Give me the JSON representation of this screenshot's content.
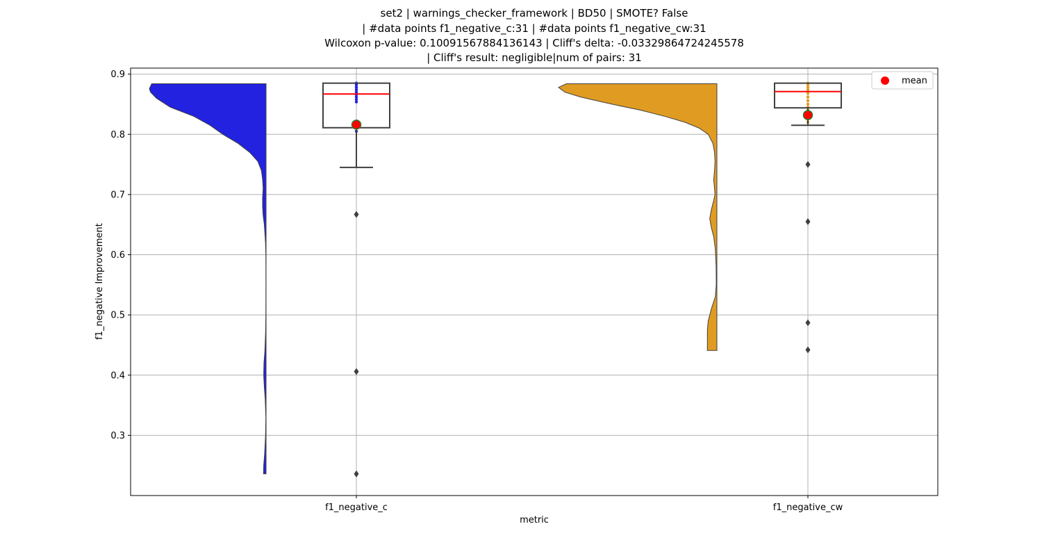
{
  "chart_data": {
    "type": "violin-box",
    "title_lines": [
      "set2 | warnings_checker_framework | BD50 | SMOTE? False",
      "| #data points f1_negative_c:31 | #data points f1_negative_cw:31",
      "Wilcoxon p-value: 0.10091567884136143 | Cliff's delta: -0.03329864724245578",
      "| Cliff's result: negligible|num of pairs: 31"
    ],
    "xlabel": "metric",
    "ylabel": "f1_negative Improvement",
    "categories": [
      "f1_negative_c",
      "f1_negative_cw"
    ],
    "ylim": [
      0.2,
      0.91
    ],
    "yticks": [
      0.3,
      0.4,
      0.5,
      0.6,
      0.7,
      0.8,
      0.9
    ],
    "ytick_labels": [
      "0.3",
      "0.4",
      "0.5",
      "0.6",
      "0.7",
      "0.8",
      "0.9"
    ],
    "grid": true,
    "legend": {
      "position": "upper-right",
      "entries": [
        {
          "label": "mean",
          "color": "#ff0000"
        }
      ]
    },
    "series": [
      {
        "category": "f1_negative_c",
        "violin_color": "#2222e0",
        "violin_side": "left",
        "violin_range": [
          0.236,
          0.884
        ],
        "violin_profile": [
          [
            0.884,
            0.98
          ],
          [
            0.876,
            1.0
          ],
          [
            0.87,
            0.99
          ],
          [
            0.86,
            0.94
          ],
          [
            0.845,
            0.82
          ],
          [
            0.83,
            0.62
          ],
          [
            0.815,
            0.48
          ],
          [
            0.8,
            0.37
          ],
          [
            0.785,
            0.24
          ],
          [
            0.77,
            0.14
          ],
          [
            0.755,
            0.07
          ],
          [
            0.74,
            0.04
          ],
          [
            0.725,
            0.03
          ],
          [
            0.71,
            0.025
          ],
          [
            0.695,
            0.03
          ],
          [
            0.68,
            0.03
          ],
          [
            0.665,
            0.025
          ],
          [
            0.65,
            0.015
          ],
          [
            0.62,
            0.005
          ],
          [
            0.6,
            0.002
          ],
          [
            0.55,
            0.001
          ],
          [
            0.5,
            0.002
          ],
          [
            0.47,
            0.004
          ],
          [
            0.44,
            0.01
          ],
          [
            0.42,
            0.018
          ],
          [
            0.4,
            0.02
          ],
          [
            0.38,
            0.015
          ],
          [
            0.36,
            0.007
          ],
          [
            0.33,
            0.002
          ],
          [
            0.3,
            0.004
          ],
          [
            0.27,
            0.012
          ],
          [
            0.25,
            0.02
          ],
          [
            0.236,
            0.022
          ]
        ],
        "q1": 0.811,
        "median": 0.867,
        "q3": 0.885,
        "whisker_low": 0.745,
        "whisker_high": 0.885,
        "mean": 0.816,
        "outliers": [
          0.667,
          0.406,
          0.236
        ],
        "points": [
          0.885,
          0.884,
          0.882,
          0.878,
          0.874,
          0.87,
          0.866,
          0.862,
          0.858,
          0.854,
          0.822,
          0.817,
          0.81,
          0.805
        ]
      },
      {
        "category": "f1_negative_cw",
        "violin_color": "#e09c22",
        "violin_side": "left",
        "violin_range": [
          0.441,
          0.884
        ],
        "violin_profile": [
          [
            0.884,
            0.95
          ],
          [
            0.878,
            1.0
          ],
          [
            0.87,
            0.96
          ],
          [
            0.862,
            0.86
          ],
          [
            0.85,
            0.66
          ],
          [
            0.84,
            0.48
          ],
          [
            0.83,
            0.33
          ],
          [
            0.82,
            0.2
          ],
          [
            0.81,
            0.11
          ],
          [
            0.8,
            0.055
          ],
          [
            0.785,
            0.025
          ],
          [
            0.77,
            0.015
          ],
          [
            0.755,
            0.012
          ],
          [
            0.74,
            0.015
          ],
          [
            0.725,
            0.02
          ],
          [
            0.71,
            0.015
          ],
          [
            0.7,
            0.012
          ],
          [
            0.69,
            0.02
          ],
          [
            0.675,
            0.035
          ],
          [
            0.66,
            0.045
          ],
          [
            0.645,
            0.035
          ],
          [
            0.63,
            0.02
          ],
          [
            0.61,
            0.01
          ],
          [
            0.58,
            0.005
          ],
          [
            0.55,
            0.004
          ],
          [
            0.53,
            0.01
          ],
          [
            0.51,
            0.035
          ],
          [
            0.49,
            0.055
          ],
          [
            0.475,
            0.06
          ],
          [
            0.455,
            0.06
          ],
          [
            0.441,
            0.06
          ]
        ],
        "q1": 0.844,
        "median": 0.871,
        "q3": 0.885,
        "whisker_low": 0.815,
        "whisker_high": 0.885,
        "mean": 0.832,
        "outliers": [
          0.75,
          0.655,
          0.487,
          0.442
        ],
        "points": [
          0.885,
          0.882,
          0.878,
          0.874,
          0.868,
          0.862,
          0.856,
          0.85,
          0.845,
          0.84,
          0.835,
          0.83,
          0.825,
          0.82
        ]
      }
    ]
  }
}
